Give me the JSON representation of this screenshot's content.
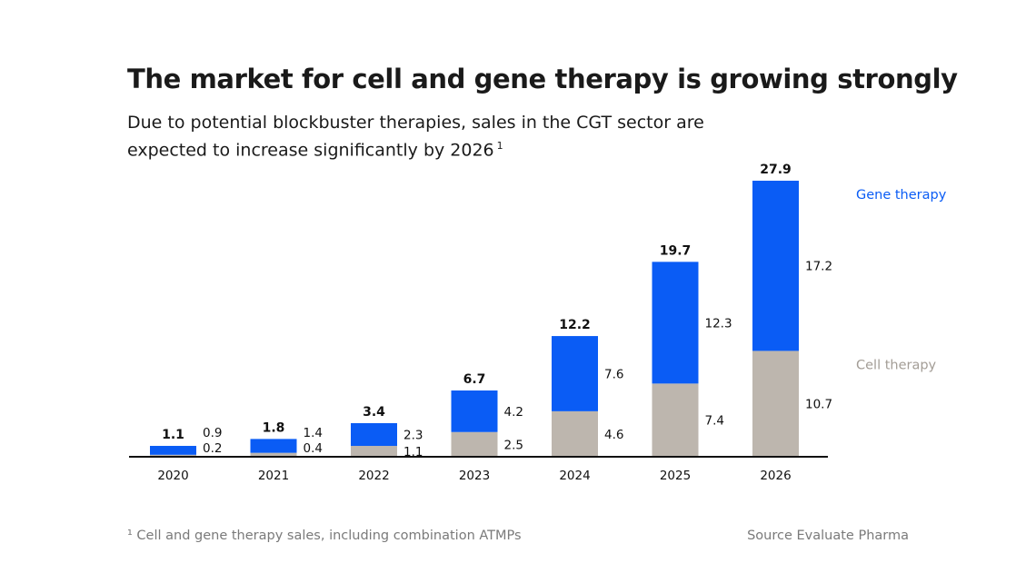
{
  "title": "The market for cell and gene therapy is growing strongly",
  "subtitle": "Due to potential blockbuster therapies, sales in the CGT sector are expected to increase significantly by 2026",
  "subtitle_footnote_marker": "1",
  "footnote": "¹ Cell and gene therapy sales, including combination ATMPs",
  "source": "Source Evaluate Pharma",
  "colors": {
    "gene_therapy": "#0a5cf5",
    "cell_therapy": "#bdb6ae",
    "gene_label": "#0a5cf5",
    "cell_label": "#a39d96",
    "axis": "#111111"
  },
  "chart_data": {
    "type": "bar",
    "stacked": true,
    "categories": [
      "2020",
      "2021",
      "2022",
      "2023",
      "2024",
      "2025",
      "2026"
    ],
    "totals": [
      "1.1",
      "1.8",
      "3.4",
      "6.7",
      "12.2",
      "19.7",
      "27.9"
    ],
    "series": [
      {
        "name": "Cell therapy",
        "values": [
          0.2,
          0.4,
          1.1,
          2.5,
          4.6,
          7.4,
          10.7
        ],
        "labels": [
          "0.2",
          "0.4",
          "1.1",
          "2.5",
          "4.6",
          "7.4",
          "10.7"
        ]
      },
      {
        "name": "Gene therapy",
        "values": [
          0.9,
          1.4,
          2.3,
          4.2,
          7.6,
          12.3,
          17.2
        ],
        "labels": [
          "0.9",
          "1.4",
          "2.3",
          "4.2",
          "7.6",
          "12.3",
          "17.2"
        ]
      }
    ],
    "ylim": [
      0,
      27.9
    ],
    "grid": false,
    "legend": "right, aligned with the last bar"
  }
}
